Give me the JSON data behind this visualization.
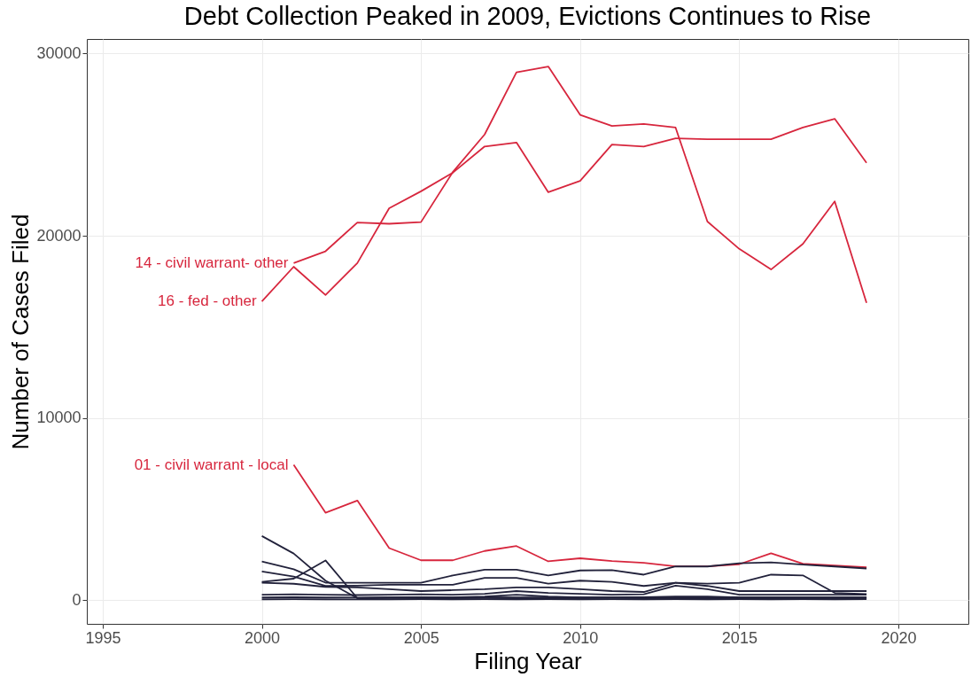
{
  "chart_data": {
    "type": "line",
    "title": "Debt Collection Peaked in 2009, Evictions Continues to Rise",
    "xlabel": "Filing Year",
    "ylabel": "Number of Cases Filed",
    "x": [
      2000,
      2001,
      2002,
      2003,
      2004,
      2005,
      2006,
      2007,
      2008,
      2009,
      2010,
      2011,
      2012,
      2013,
      2014,
      2015,
      2016,
      2017,
      2018,
      2019
    ],
    "series": [
      {
        "name": "14 - civil warrant- other",
        "color": "#d7263d",
        "values": [
          null,
          18500,
          19150,
          20730,
          20660,
          20750,
          23500,
          25560,
          28970,
          29290,
          26640,
          26030,
          26140,
          25940,
          20780,
          19280,
          18150,
          19550,
          21890,
          16320
        ]
      },
      {
        "name": "16 - fed - other",
        "color": "#d7263d",
        "values": [
          16400,
          18300,
          16750,
          18500,
          21510,
          22440,
          23460,
          24900,
          25120,
          22390,
          23010,
          25010,
          24900,
          25350,
          25300,
          25300,
          25300,
          25940,
          26420,
          24000
        ]
      },
      {
        "name": "01 - civil warrant - local",
        "color": "#d7263d",
        "values": [
          null,
          7430,
          4800,
          5470,
          2860,
          2190,
          2190,
          2700,
          2970,
          2130,
          2300,
          2150,
          2050,
          1860,
          1860,
          1970,
          2570,
          2000,
          1900,
          1800
        ]
      },
      {
        "color": "#22223b",
        "values": [
          3520,
          2560,
          1070,
          110,
          120,
          100,
          110,
          120,
          100,
          110,
          100,
          120,
          110,
          100,
          110,
          100,
          100,
          110,
          100,
          100
        ]
      },
      {
        "color": "#22223b",
        "values": [
          2120,
          1700,
          960,
          960,
          960,
          960,
          1360,
          1670,
          1670,
          1360,
          1630,
          1650,
          1400,
          1850,
          1850,
          2030,
          2070,
          1950,
          1850,
          1740
        ]
      },
      {
        "color": "#22223b",
        "values": [
          1000,
          1180,
          2180,
          110,
          150,
          150,
          150,
          160,
          150,
          150,
          150,
          150,
          150,
          150,
          150,
          150,
          150,
          150,
          150,
          150
        ]
      },
      {
        "color": "#22223b",
        "values": [
          1580,
          1300,
          780,
          800,
          850,
          850,
          850,
          1220,
          1220,
          910,
          1070,
          1000,
          780,
          960,
          910,
          960,
          1400,
          1360,
          400,
          330
        ]
      },
      {
        "color": "#22223b",
        "values": [
          960,
          900,
          730,
          700,
          600,
          500,
          550,
          600,
          700,
          700,
          600,
          500,
          450,
          960,
          780,
          500,
          500,
          500,
          500,
          500
        ]
      },
      {
        "color": "#22223b",
        "values": [
          300,
          320,
          300,
          280,
          300,
          320,
          300,
          350,
          500,
          400,
          350,
          300,
          320,
          800,
          600,
          300,
          300,
          300,
          300,
          300
        ]
      },
      {
        "color": "#22223b",
        "values": [
          150,
          160,
          150,
          140,
          150,
          160,
          150,
          200,
          300,
          200,
          150,
          150,
          160,
          200,
          200,
          150,
          150,
          150,
          150,
          150
        ]
      },
      {
        "color": "#22223b",
        "values": [
          50,
          60,
          50,
          40,
          50,
          60,
          50,
          60,
          50,
          60,
          50,
          60,
          50,
          60,
          50,
          60,
          50,
          60,
          50,
          60
        ]
      }
    ],
    "xlim": [
      1994.5,
      2022.2
    ],
    "ylim": [
      -1300,
      30800
    ],
    "xticks": [
      1995,
      2000,
      2005,
      2010,
      2015,
      2020
    ],
    "yticks": [
      0,
      10000,
      20000,
      30000
    ],
    "grid": true,
    "line_style": "solid",
    "marker": "none"
  }
}
